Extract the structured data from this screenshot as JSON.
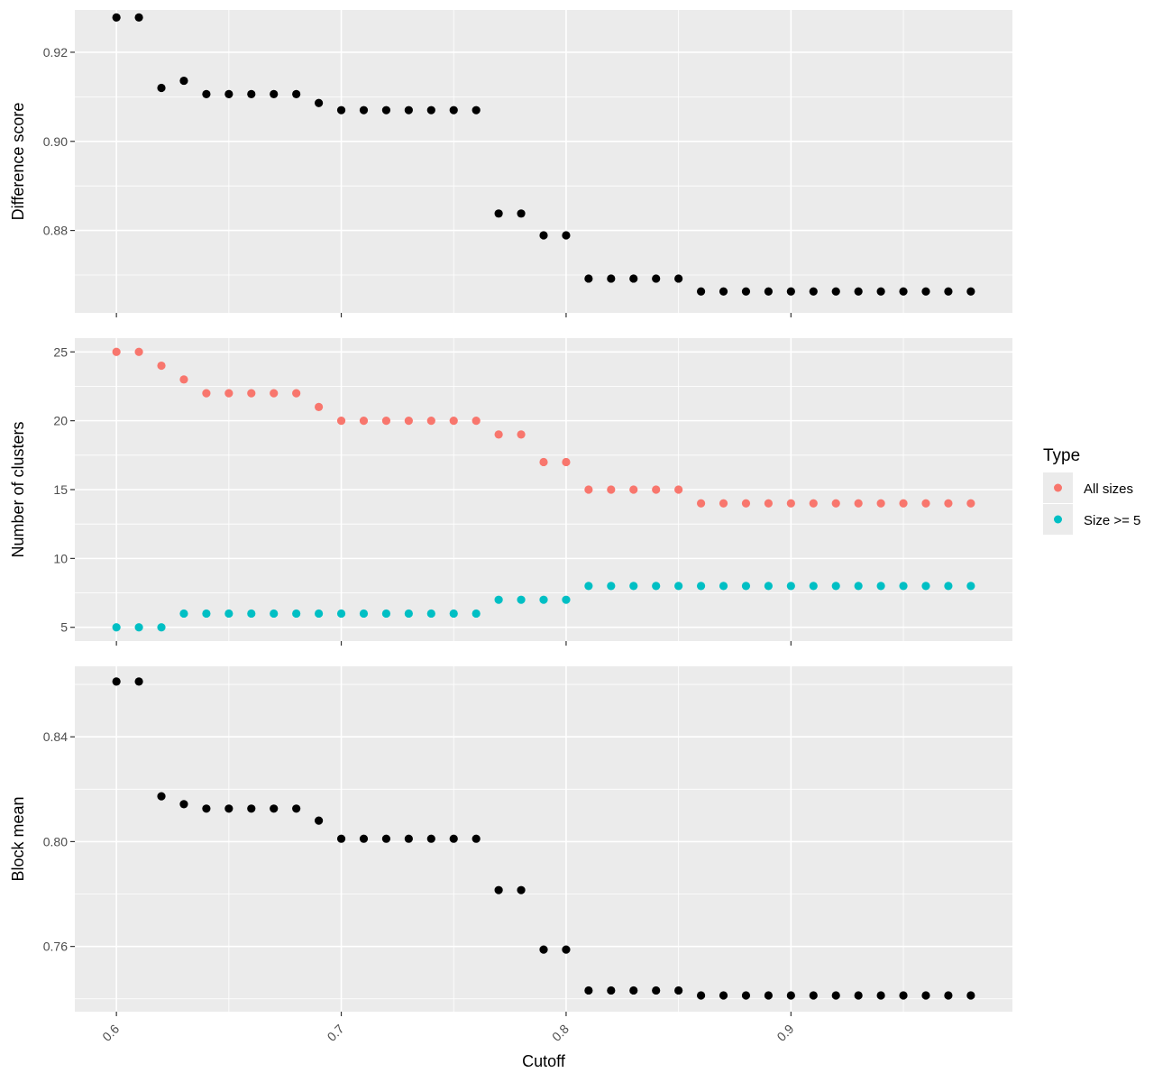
{
  "chart_data": [
    {
      "type": "scatter",
      "ylabel": "Difference score",
      "y_ticks": [
        0.88,
        0.9,
        0.92
      ],
      "y_tick_labels": [
        "0.88",
        "0.90",
        "0.92"
      ],
      "ylim": [
        0.8615,
        0.9295
      ],
      "x": [
        0.6,
        0.61,
        0.62,
        0.63,
        0.64,
        0.65,
        0.66,
        0.67,
        0.68,
        0.69,
        0.7,
        0.71,
        0.72,
        0.73,
        0.74,
        0.75,
        0.76,
        0.77,
        0.78,
        0.79,
        0.8,
        0.81,
        0.82,
        0.83,
        0.84,
        0.85,
        0.86,
        0.87,
        0.88,
        0.89,
        0.9,
        0.91,
        0.92,
        0.93,
        0.94,
        0.95,
        0.96,
        0.97,
        0.98
      ],
      "series": [
        {
          "color": "#000000",
          "values": [
            0.9278,
            0.9278,
            0.912,
            0.9136,
            0.9106,
            0.9106,
            0.9106,
            0.9106,
            0.9106,
            0.9086,
            0.907,
            0.907,
            0.907,
            0.907,
            0.907,
            0.907,
            0.907,
            0.8838,
            0.8838,
            0.8789,
            0.8789,
            0.8692,
            0.8692,
            0.8692,
            0.8692,
            0.8692,
            0.8663,
            0.8663,
            0.8663,
            0.8663,
            0.8663,
            0.8663,
            0.8663,
            0.8663,
            0.8663,
            0.8663,
            0.8663,
            0.8663,
            0.8663
          ]
        }
      ]
    },
    {
      "type": "scatter",
      "ylabel": "Number of clusters",
      "y_ticks": [
        5,
        10,
        15,
        20,
        25
      ],
      "y_tick_labels": [
        "5",
        "10",
        "15",
        "20",
        "25"
      ],
      "ylim": [
        4.0,
        26.0
      ],
      "x": [
        0.6,
        0.61,
        0.62,
        0.63,
        0.64,
        0.65,
        0.66,
        0.67,
        0.68,
        0.69,
        0.7,
        0.71,
        0.72,
        0.73,
        0.74,
        0.75,
        0.76,
        0.77,
        0.78,
        0.79,
        0.8,
        0.81,
        0.82,
        0.83,
        0.84,
        0.85,
        0.86,
        0.87,
        0.88,
        0.89,
        0.9,
        0.91,
        0.92,
        0.93,
        0.94,
        0.95,
        0.96,
        0.97,
        0.98
      ],
      "series": [
        {
          "name": "All sizes",
          "color": "#F8766D",
          "values": [
            25,
            25,
            24,
            23,
            22,
            22,
            22,
            22,
            22,
            21,
            20,
            20,
            20,
            20,
            20,
            20,
            20,
            19,
            19,
            17,
            17,
            15,
            15,
            15,
            15,
            15,
            14,
            14,
            14,
            14,
            14,
            14,
            14,
            14,
            14,
            14,
            14,
            14,
            14
          ]
        },
        {
          "name": "Size >= 5",
          "color": "#00BFC4",
          "values": [
            5,
            5,
            5,
            6,
            6,
            6,
            6,
            6,
            6,
            6,
            6,
            6,
            6,
            6,
            6,
            6,
            6,
            7,
            7,
            7,
            7,
            8,
            8,
            8,
            8,
            8,
            8,
            8,
            8,
            8,
            8,
            8,
            8,
            8,
            8,
            8,
            8,
            8,
            8
          ]
        }
      ]
    },
    {
      "type": "scatter",
      "ylabel": "Block mean",
      "xlabel": "Cutoff",
      "y_ticks": [
        0.76,
        0.8,
        0.84
      ],
      "y_tick_labels": [
        "0.76",
        "0.80",
        "0.84"
      ],
      "ylim": [
        0.7351,
        0.8669
      ],
      "x": [
        0.6,
        0.61,
        0.62,
        0.63,
        0.64,
        0.65,
        0.66,
        0.67,
        0.68,
        0.69,
        0.7,
        0.71,
        0.72,
        0.73,
        0.74,
        0.75,
        0.76,
        0.77,
        0.78,
        0.79,
        0.8,
        0.81,
        0.82,
        0.83,
        0.84,
        0.85,
        0.86,
        0.87,
        0.88,
        0.89,
        0.9,
        0.91,
        0.92,
        0.93,
        0.94,
        0.95,
        0.96,
        0.97,
        0.98
      ],
      "series": [
        {
          "color": "#000000",
          "values": [
            0.8611,
            0.8611,
            0.8173,
            0.8143,
            0.8126,
            0.8126,
            0.8126,
            0.8126,
            0.8126,
            0.808,
            0.8011,
            0.8011,
            0.8011,
            0.8011,
            0.8011,
            0.8011,
            0.8011,
            0.7815,
            0.7815,
            0.7588,
            0.7588,
            0.7432,
            0.7432,
            0.7432,
            0.7432,
            0.7432,
            0.7413,
            0.7413,
            0.7413,
            0.7413,
            0.7413,
            0.7413,
            0.7413,
            0.7413,
            0.7413,
            0.7413,
            0.7413,
            0.7413,
            0.7413
          ]
        }
      ]
    }
  ],
  "x_axis": {
    "xlim": [
      0.5815,
      0.9985
    ],
    "ticks": [
      0.6,
      0.7,
      0.8,
      0.9
    ],
    "tick_labels": [
      "0.6",
      "0.7",
      "0.8",
      "0.9"
    ]
  },
  "legend": {
    "title": "Type",
    "position": "right",
    "entries": [
      {
        "label": "All sizes",
        "color": "#F8766D"
      },
      {
        "label": "Size >= 5",
        "color": "#00BFC4"
      }
    ]
  }
}
